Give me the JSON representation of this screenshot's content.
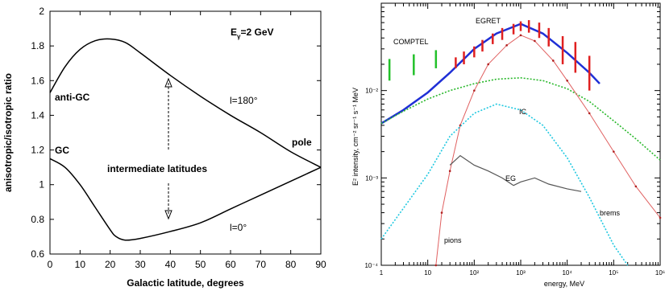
{
  "chart_data": [
    {
      "type": "line",
      "annotation_top": "E",
      "annotation_top_sub": "γ",
      "annotation_top_rest": "=2 GeV",
      "xlabel": "Galactic latitude, degrees",
      "ylabel": "anisotropic/isotropic ratio",
      "xlim": [
        0,
        90
      ],
      "ylim": [
        0.6,
        2
      ],
      "xticks": [
        "0",
        "10",
        "20",
        "30",
        "40",
        "50",
        "60",
        "70",
        "80",
        "90"
      ],
      "yticks": [
        "0.6",
        "0.8",
        "1",
        "1.2",
        "1.4",
        "1.6",
        "1.8",
        "2"
      ],
      "series": [
        {
          "name": "l=180°",
          "x": [
            0,
            5,
            10,
            15,
            20,
            25,
            30,
            40,
            50,
            60,
            70,
            80,
            90
          ],
          "y": [
            1.53,
            1.68,
            1.78,
            1.83,
            1.84,
            1.82,
            1.76,
            1.63,
            1.51,
            1.4,
            1.3,
            1.19,
            1.1
          ]
        },
        {
          "name": "l=0°",
          "x": [
            0,
            5,
            10,
            15,
            20,
            22,
            25,
            30,
            40,
            50,
            60,
            70,
            80,
            90
          ],
          "y": [
            1.15,
            1.1,
            1.0,
            0.87,
            0.74,
            0.7,
            0.68,
            0.69,
            0.73,
            0.78,
            0.86,
            0.94,
            1.02,
            1.1
          ]
        }
      ],
      "labels": {
        "anti_gc": "anti-GC",
        "gc": "GC",
        "pole": "pole",
        "intermediate": "intermediate latitudes",
        "l180": "l=180°",
        "l0": "l=0°"
      }
    },
    {
      "type": "line",
      "xscale": "log",
      "yscale": "log",
      "xlabel": "energy, MeV",
      "ylabel": "E² intensity, cm⁻² sr⁻¹ s⁻¹ MeV",
      "xlim": [
        1,
        1000000
      ],
      "ylim": [
        0.0001,
        0.1
      ],
      "xticks": [
        "1",
        "10",
        "10²",
        "10³",
        "10⁴",
        "10⁵",
        "10⁶"
      ],
      "yticks": [
        "10⁻⁴",
        "10⁻³",
        "10⁻²"
      ],
      "series": [
        {
          "name": "total",
          "color": "#1f2fd6",
          "x": [
            1,
            3,
            10,
            30,
            100,
            300,
            1000,
            3000,
            10000,
            30000,
            50000
          ],
          "y": [
            0.0042,
            0.006,
            0.0095,
            0.016,
            0.03,
            0.045,
            0.058,
            0.045,
            0.027,
            0.016,
            0.012
          ]
        },
        {
          "name": "IC",
          "color": "#29b82b",
          "x": [
            1,
            3,
            10,
            30,
            100,
            300,
            1000,
            3000,
            10000,
            30000,
            100000,
            300000,
            1000000
          ],
          "y": [
            0.0042,
            0.0058,
            0.008,
            0.01,
            0.012,
            0.0135,
            0.014,
            0.013,
            0.0105,
            0.0075,
            0.0045,
            0.0028,
            0.0016
          ]
        },
        {
          "name": "pions",
          "color": "#e06060",
          "x": [
            15,
            20,
            30,
            50,
            100,
            200,
            500,
            1000,
            2000,
            5000,
            10000,
            30000,
            100000,
            300000,
            1000000
          ],
          "y": [
            0.0001,
            0.0004,
            0.0012,
            0.004,
            0.01,
            0.02,
            0.033,
            0.043,
            0.037,
            0.022,
            0.013,
            0.0055,
            0.002,
            0.0008,
            0.00035
          ]
        },
        {
          "name": "brems",
          "color": "#1fc8e0",
          "x": [
            1,
            3,
            10,
            30,
            100,
            300,
            1000,
            3000,
            10000,
            30000,
            100000,
            200000
          ],
          "y": [
            0.0002,
            0.00045,
            0.0011,
            0.003,
            0.0055,
            0.007,
            0.006,
            0.004,
            0.0017,
            0.0006,
            0.00017,
            0.0001
          ]
        },
        {
          "name": "EG",
          "color": "#555555",
          "x": [
            30,
            50,
            100,
            200,
            400,
            700,
            1000,
            2000,
            4000,
            10000,
            20000
          ],
          "y": [
            0.0014,
            0.0018,
            0.0014,
            0.0012,
            0.001,
            0.00082,
            0.0009,
            0.001,
            0.00085,
            0.00075,
            0.0007
          ]
        }
      ],
      "comptel": {
        "name": "COMPTEL",
        "x": [
          1.5,
          5,
          15
        ],
        "lo": [
          0.013,
          0.015,
          0.018
        ],
        "hi": [
          0.023,
          0.026,
          0.029
        ]
      },
      "egret": {
        "name": "EGRET",
        "x": [
          40,
          60,
          100,
          150,
          250,
          400,
          700,
          1000,
          1500,
          2500,
          4000,
          8000,
          15000,
          30000
        ],
        "lo": [
          0.018,
          0.02,
          0.024,
          0.028,
          0.034,
          0.038,
          0.044,
          0.048,
          0.046,
          0.04,
          0.032,
          0.02,
          0.016,
          0.01
        ],
        "hi": [
          0.024,
          0.028,
          0.032,
          0.038,
          0.045,
          0.052,
          0.058,
          0.062,
          0.064,
          0.06,
          0.052,
          0.042,
          0.036,
          0.025
        ]
      },
      "labels": {
        "egret": "EGRET",
        "comptel": "COMPTEL",
        "ic": "IC",
        "eg": "EG",
        "brems": "brems",
        "pions": "pions"
      }
    }
  ]
}
